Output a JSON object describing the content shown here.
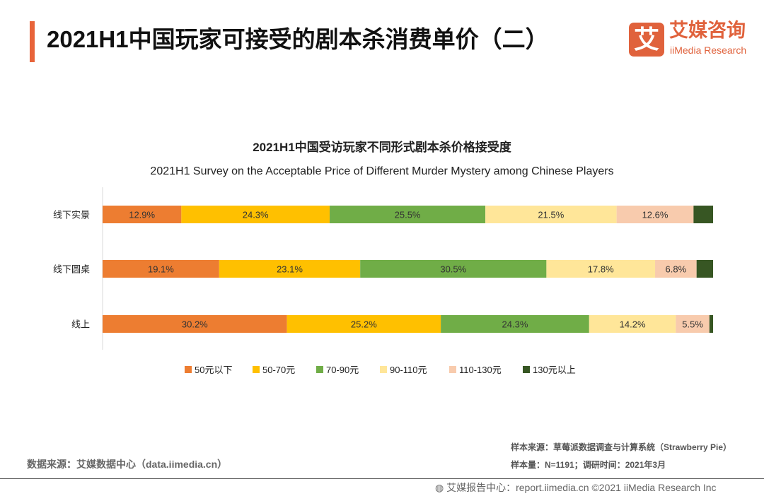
{
  "header": {
    "title": "2021H1中国玩家可接受的剧本杀消费单价（二）",
    "logo_mark": "艾",
    "logo_cn": "艾媒咨询",
    "logo_en": "iiMedia Research"
  },
  "chart_data": {
    "type": "bar",
    "orientation": "horizontal-stacked-100",
    "title": "2021H1中国受访玩家不同形式剧本杀价格接受度",
    "subtitle": "2021H1 Survey on the Acceptable Price of Different Murder Mystery among Chinese Players",
    "categories": [
      "线下实景",
      "线下圆桌",
      "线上"
    ],
    "series": [
      {
        "name": "50元以下",
        "color": "#ed7d31",
        "values": [
          12.9,
          19.1,
          30.2
        ],
        "labels": [
          "12.9%",
          "19.1%",
          "30.2%"
        ]
      },
      {
        "name": "50-70元",
        "color": "#ffc000",
        "values": [
          24.3,
          23.1,
          25.2
        ],
        "labels": [
          "24.3%",
          "23.1%",
          "25.2%"
        ]
      },
      {
        "name": "70-90元",
        "color": "#70ad47",
        "values": [
          25.5,
          30.5,
          24.3
        ],
        "labels": [
          "25.5%",
          "30.5%",
          "24.3%"
        ]
      },
      {
        "name": "90-110元",
        "color": "#ffe699",
        "values": [
          21.5,
          17.8,
          14.2
        ],
        "labels": [
          "21.5%",
          "17.8%",
          "14.2%"
        ]
      },
      {
        "name": "110-130元",
        "color": "#f8cbad",
        "values": [
          12.6,
          6.8,
          5.5
        ],
        "labels": [
          "12.6%",
          "6.8%",
          "5.5%"
        ]
      },
      {
        "name": "130元以上",
        "color": "#375623",
        "values": [
          3.2,
          2.7,
          0.6
        ],
        "labels": [
          "",
          "",
          ""
        ]
      }
    ],
    "xlim": [
      0,
      100
    ],
    "legend": "bottom"
  },
  "footer": {
    "sample_source": "样本来源：草莓派数据调查与计算系统（Strawberry Pie）",
    "sample_size": "样本量：N=1191；调研时间：2021年3月",
    "data_source": "数据来源：艾媒数据中心（data.iimedia.cn）",
    "report": "艾媒报告中心：report.iimedia.cn   ©2021  iiMedia Research  Inc"
  }
}
